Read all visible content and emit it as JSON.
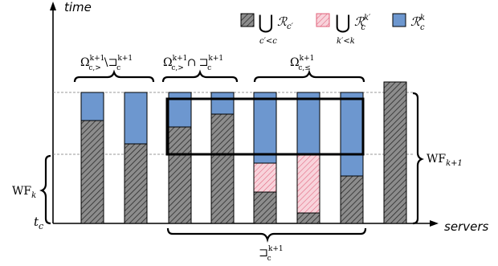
{
  "axes": {
    "y_label": "time",
    "x_label": "servers",
    "origin_label": "t",
    "origin_subscript": "c"
  },
  "legend": {
    "items": [
      {
        "symbol": "⋃",
        "under": "c′<c",
        "main": "ℛ",
        "sub": "c′",
        "sup": "",
        "fill": "gray-hatch"
      },
      {
        "symbol": "⋃",
        "under": "k′<k",
        "main": "ℛ",
        "sub": "c",
        "sup": "k′",
        "fill": "pink-hatch"
      },
      {
        "symbol": "",
        "under": "",
        "main": "ℛ",
        "sub": "c",
        "sup": "k",
        "fill": "blue"
      }
    ]
  },
  "groups": {
    "g1": {
      "main": "Ω",
      "sup": "k+1",
      "sub": "c,>",
      "op": "\\",
      "main2": "⊐",
      "sup2": "k+1",
      "sub2": "c"
    },
    "g2": {
      "main": "Ω",
      "sup": "k+1",
      "sub": "c,>",
      "op": "∩",
      "main2": "⊐",
      "sup2": "k+1",
      "sub2": "c"
    },
    "g3": {
      "main": "Ω",
      "sup": "k+1",
      "sub": "c,≤"
    },
    "bottom": {
      "main": "⊐",
      "sup": "k+1",
      "sub": "c"
    }
  },
  "side_labels": {
    "wf_k": {
      "main": "WF",
      "sub": "k"
    },
    "wf_k1": {
      "main": "WF",
      "sub": "k+1"
    }
  },
  "colors": {
    "gray": "#8c8c8c",
    "blue": "#6d97cf",
    "pink": "#f6c4cf",
    "pink_hatch": "#e0607a",
    "black": "#000000"
  }
}
